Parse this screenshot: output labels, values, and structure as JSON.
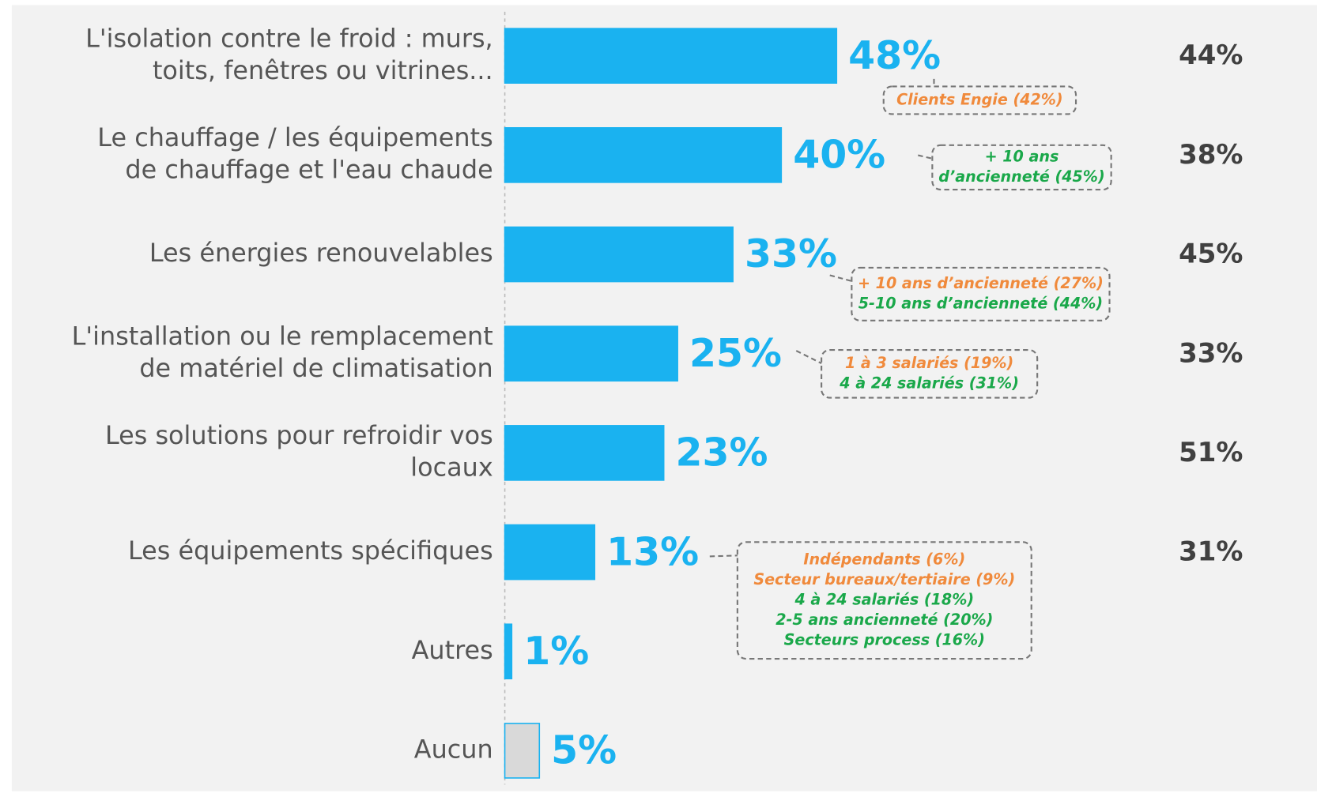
{
  "chart_data": {
    "type": "barh",
    "categories": [
      [
        "L'isolation contre le froid : murs,",
        "toits, fenêtres ou vitrines..."
      ],
      [
        "Le chauffage / les équipements",
        "de chauffage et l'eau chaude"
      ],
      [
        "Les énergies renouvelables"
      ],
      [
        "L'installation ou le remplacement",
        "de matériel de climatisation"
      ],
      [
        "Les solutions pour refroidir vos",
        "locaux"
      ],
      [
        "Les équipements spécifiques"
      ],
      [
        "Autres"
      ],
      [
        "Aucun"
      ]
    ],
    "values": [
      48,
      40,
      33,
      25,
      23,
      13,
      1,
      5
    ],
    "value_labels": [
      "48%",
      "40%",
      "33%",
      "25%",
      "23%",
      "13%",
      "1%",
      "5%"
    ],
    "colors": [
      "#1ab2f0",
      "#1ab2f0",
      "#1ab2f0",
      "#1ab2f0",
      "#1ab2f0",
      "#1ab2f0",
      "#1ab2f0",
      "#d9d9d9"
    ],
    "edge_color": "#1ab2f0",
    "label_color": "#1ab2f0",
    "comparison_values": [
      44,
      38,
      45,
      33,
      51,
      31,
      null,
      null
    ],
    "comparison_labels": [
      "44%",
      "38%",
      "45%",
      "33%",
      "51%",
      "31%",
      null,
      null
    ],
    "annotations": [
      {
        "category": 0,
        "lines": [
          {
            "text": "Clients Engie (42%)",
            "color": "#f08a3c"
          }
        ]
      },
      {
        "category": 1,
        "lines": [
          {
            "text": "+ 10 ans",
            "color": "#1aa84a"
          },
          {
            "text": "d’ancienneté (45%)",
            "color": "#1aa84a"
          }
        ]
      },
      {
        "category": 2,
        "lines": [
          {
            "text": "+ 10 ans d’ancienneté (27%)",
            "color": "#f08a3c"
          },
          {
            "text": "5-10 ans d’ancienneté (44%)",
            "color": "#1aa84a"
          }
        ]
      },
      {
        "category": 3,
        "lines": [
          {
            "text": "1 à 3 salariés (19%)",
            "color": "#f08a3c"
          },
          {
            "text": "4 à 24 salariés (31%)",
            "color": "#1aa84a"
          }
        ]
      },
      {
        "category": 5,
        "lines": [
          {
            "text": "Indépendants (6%)",
            "color": "#f08a3c"
          },
          {
            "text": "Secteur bureaux/tertiaire (9%)",
            "color": "#f08a3c"
          },
          {
            "text": "4 à 24 salariés (18%)",
            "color": "#1aa84a"
          },
          {
            "text": "2-5 ans ancienneté (20%)",
            "color": "#1aa84a"
          },
          {
            "text": "Secteurs process (16%)",
            "color": "#1aa84a"
          }
        ]
      }
    ]
  }
}
